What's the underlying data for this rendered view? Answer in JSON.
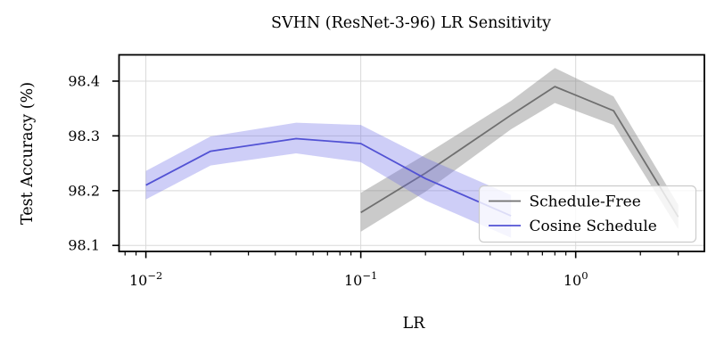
{
  "chart_data": {
    "type": "line",
    "title": "SVHN (ResNet-3-96) LR Sensitivity",
    "xlabel": "LR",
    "ylabel": "Test Accuracy (%)",
    "x_scale": "log",
    "xlim": [
      0.0075,
      3.97
    ],
    "ylim": [
      98.089,
      98.448
    ],
    "grid": true,
    "yticks": [
      98.1,
      98.2,
      98.3,
      98.4
    ],
    "ytick_labels": [
      "98.1",
      "98.2",
      "98.3",
      "98.4"
    ],
    "xticks": [
      0.01,
      0.1,
      1.0
    ],
    "xtick_labels": [
      {
        "base": "10",
        "exp": "−2"
      },
      {
        "base": "10",
        "exp": "−1"
      },
      {
        "base": "10",
        "exp": "0"
      }
    ],
    "legend": {
      "position": "lower right",
      "entries": [
        "Schedule-Free",
        "Cosine Schedule"
      ]
    },
    "series": [
      {
        "name": "Schedule-Free",
        "color": "#6f6f6f",
        "band_color": "rgba(128,128,128,0.42)",
        "x": [
          0.1,
          0.2,
          0.5,
          0.8,
          1.5,
          3.0
        ],
        "y": [
          98.16,
          98.232,
          98.338,
          98.39,
          98.346,
          98.152
        ],
        "y_low": [
          98.125,
          98.198,
          98.312,
          98.36,
          98.32,
          98.13
        ],
        "y_high": [
          98.196,
          98.266,
          98.364,
          98.424,
          98.372,
          98.174
        ]
      },
      {
        "name": "Cosine Schedule",
        "color": "#5252d4",
        "band_color": "rgba(105,105,230,0.33)",
        "x": [
          0.01,
          0.02,
          0.05,
          0.1,
          0.2,
          0.5
        ],
        "y": [
          98.21,
          98.272,
          98.295,
          98.286,
          98.222,
          98.154
        ],
        "y_low": [
          98.184,
          98.246,
          98.268,
          98.252,
          98.182,
          98.114
        ],
        "y_high": [
          98.236,
          98.299,
          98.324,
          98.32,
          98.26,
          98.192
        ]
      }
    ],
    "style": {
      "grid_color": "#d9d9d9",
      "spine_color": "#000000",
      "legend_border_color": "#cccccc",
      "legend_bg": "rgba(255,255,255,0.8)"
    }
  }
}
